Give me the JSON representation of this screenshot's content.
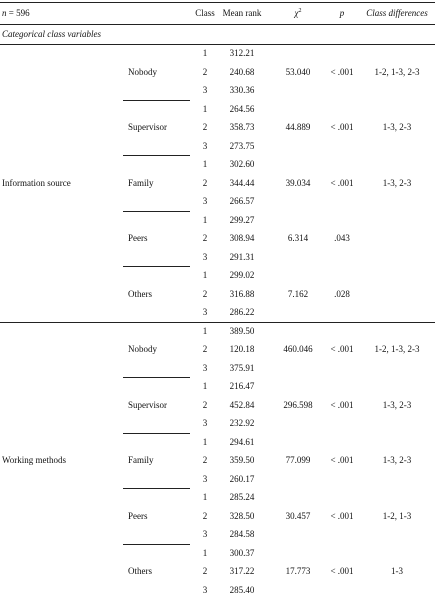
{
  "table": {
    "header": {
      "n_symbol": "n",
      "n_rest": "= 596",
      "class": "Class",
      "mean_rank": "Mean rank",
      "chi_symbol": "χ",
      "chi_sup": "2",
      "p": "p",
      "differences": "Class differences"
    },
    "section": "Categorical class variables",
    "groups": [
      {
        "name": "Information source",
        "items": [
          {
            "name": "Nobody",
            "classes": [
              "1",
              "2",
              "3"
            ],
            "ranks": [
              "312.21",
              "240.68",
              "330.36"
            ],
            "chi2": "53.040",
            "p": "< .001",
            "diff": "1-2, 1-3, 2-3"
          },
          {
            "name": "Supervisor",
            "classes": [
              "1",
              "2",
              "3"
            ],
            "ranks": [
              "264.56",
              "358.73",
              "273.75"
            ],
            "chi2": "44.889",
            "p": "< .001",
            "diff": "1-3, 2-3"
          },
          {
            "name": "Family",
            "classes": [
              "1",
              "2",
              "3"
            ],
            "ranks": [
              "302.60",
              "344.44",
              "266.57"
            ],
            "chi2": "39.034",
            "p": "< .001",
            "diff": "1-3, 2-3"
          },
          {
            "name": "Peers",
            "classes": [
              "1",
              "2",
              "3"
            ],
            "ranks": [
              "299.27",
              "308.94",
              "291.31"
            ],
            "chi2": "6.314",
            "p": ".043",
            "diff": null
          },
          {
            "name": "Others",
            "classes": [
              "1",
              "2",
              "3"
            ],
            "ranks": [
              "299.02",
              "316.88",
              "286.22"
            ],
            "chi2": "7.162",
            "p": ".028",
            "diff": null
          }
        ]
      },
      {
        "name": "Working methods",
        "items": [
          {
            "name": "Nobody",
            "classes": [
              "1",
              "2",
              "3"
            ],
            "ranks": [
              "389.50",
              "120.18",
              "375.91"
            ],
            "chi2": "460.046",
            "p": "< .001",
            "diff": "1-2, 1-3, 2-3"
          },
          {
            "name": "Supervisor",
            "classes": [
              "1",
              "2",
              "3"
            ],
            "ranks": [
              "216.47",
              "452.84",
              "232.92"
            ],
            "chi2": "296.598",
            "p": "< .001",
            "diff": "1-3, 2-3"
          },
          {
            "name": "Family",
            "classes": [
              "1",
              "2",
              "3"
            ],
            "ranks": [
              "294.61",
              "359.50",
              "260.17"
            ],
            "chi2": "77.099",
            "p": "< .001",
            "diff": "1-3, 2-3"
          },
          {
            "name": "Peers",
            "classes": [
              "1",
              "2",
              "3"
            ],
            "ranks": [
              "285.24",
              "328.50",
              "284.58"
            ],
            "chi2": "30.457",
            "p": "< .001",
            "diff": "1-2, 1-3"
          },
          {
            "name": "Others",
            "classes": [
              "1",
              "2",
              "3"
            ],
            "ranks": [
              "300.37",
              "317.22",
              "285.40"
            ],
            "chi2": "17.773",
            "p": "< .001",
            "diff": "1-3"
          }
        ]
      }
    ]
  }
}
